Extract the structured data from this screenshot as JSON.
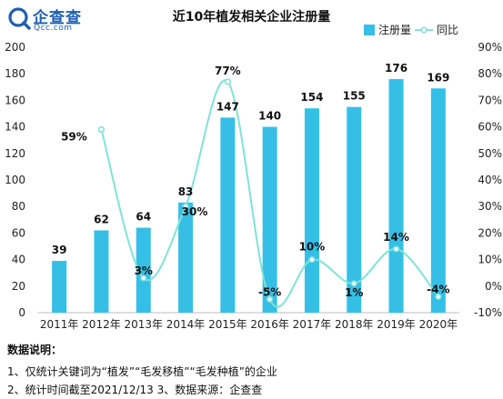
{
  "logo": {
    "cn": "企查查",
    "en": "Qcc.com"
  },
  "notes": {
    "title": "数据说明：",
    "line1": "1、仅统计关键词为“植发”“毛发移植”“毛发种植”的企业",
    "line2": "2、统计时间截至2021/12/13      3、数据来源：企查查"
  },
  "colors": {
    "bar": "#35bfe6",
    "line": "#7fe3d6",
    "brand": "#1f5fb0"
  },
  "chart_data": {
    "type": "bar",
    "title": "近10年植发相关企业注册量",
    "categories": [
      "2011年",
      "2012年",
      "2013年",
      "2014年",
      "2015年",
      "2016年",
      "2017年",
      "2018年",
      "2019年",
      "2020年"
    ],
    "series": [
      {
        "name": "注册量",
        "type": "bar",
        "axis": "left",
        "values": [
          39,
          62,
          64,
          83,
          147,
          140,
          154,
          155,
          176,
          169
        ]
      },
      {
        "name": "同比",
        "type": "line",
        "axis": "right",
        "values": [
          null,
          59,
          3,
          30,
          77,
          -5,
          10,
          1,
          14,
          -4
        ]
      }
    ],
    "ylim": [
      0,
      200
    ],
    "yticks": [
      0,
      20,
      40,
      60,
      80,
      100,
      120,
      140,
      160,
      180,
      200
    ],
    "y2lim": [
      -10,
      90
    ],
    "y2ticks": [
      "-10%",
      "0%",
      "10%",
      "20%",
      "30%",
      "40%",
      "50%",
      "60%",
      "70%",
      "80%",
      "90%"
    ],
    "bar_labels": [
      "39",
      "62",
      "64",
      "83",
      "147",
      "140",
      "154",
      "155",
      "176",
      "169"
    ],
    "line_labels": [
      "",
      "59%",
      "3%",
      "30%",
      "77%",
      "-5%",
      "10%",
      "1%",
      "14%",
      "-4%"
    ],
    "legend": {
      "position": "top-right",
      "entries": [
        "注册量",
        "同比"
      ]
    },
    "grid": false
  }
}
